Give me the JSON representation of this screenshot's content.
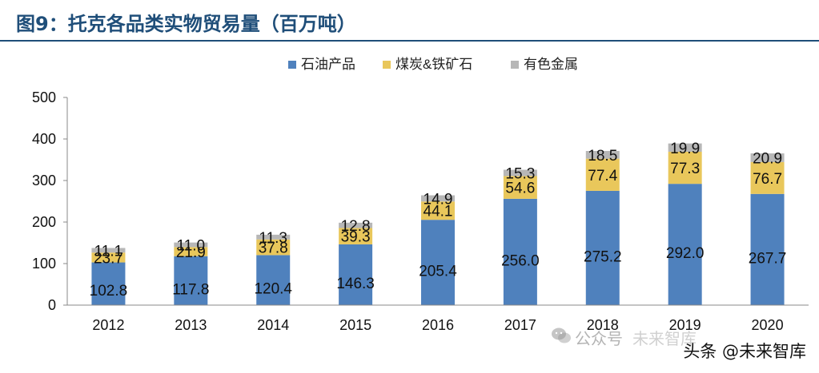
{
  "title": "图9：托克各品类实物贸易量（百万吨）",
  "chart_data": {
    "type": "bar",
    "stacked": true,
    "title": "托克各品类实物贸易量（百万吨）",
    "categories": [
      "2012",
      "2013",
      "2014",
      "2015",
      "2016",
      "2017",
      "2018",
      "2019",
      "2020"
    ],
    "series": [
      {
        "name": "石油产品",
        "color": "#4f81bd",
        "values": [
          102.8,
          117.8,
          120.4,
          146.3,
          205.4,
          256.0,
          275.2,
          292.0,
          267.7
        ]
      },
      {
        "name": "煤炭&铁矿石",
        "color": "#e9c75b",
        "values": [
          23.7,
          21.9,
          37.8,
          39.3,
          44.1,
          54.6,
          77.4,
          77.3,
          76.7
        ]
      },
      {
        "name": "有色金属",
        "color": "#b7b7b7",
        "values": [
          11.1,
          11.0,
          11.3,
          12.8,
          14.9,
          15.3,
          18.5,
          19.9,
          20.9
        ]
      }
    ],
    "value_labels": [
      [
        "102.8",
        "117.8",
        "120.4",
        "146.3",
        "205.4",
        "256.0",
        "275.2",
        "292.0",
        "267.7"
      ],
      [
        "23.7",
        "21.9",
        "37.8",
        "39.3",
        "44.1",
        "54.6",
        "77.4",
        "77.3",
        "76.7"
      ],
      [
        "11.1",
        "11.0",
        "11.3",
        "12.8",
        "14.9",
        "15.3",
        "18.5",
        "19.9",
        "20.9"
      ]
    ],
    "ylim": [
      0,
      500
    ],
    "yticks": [
      0,
      100,
      200,
      300,
      400,
      500
    ],
    "legend": "top",
    "grid": false
  },
  "watermarks": {
    "wechat_text": "公众号",
    "wechat_brand": "未来智库",
    "toutiao": "头条 @未来智库"
  }
}
